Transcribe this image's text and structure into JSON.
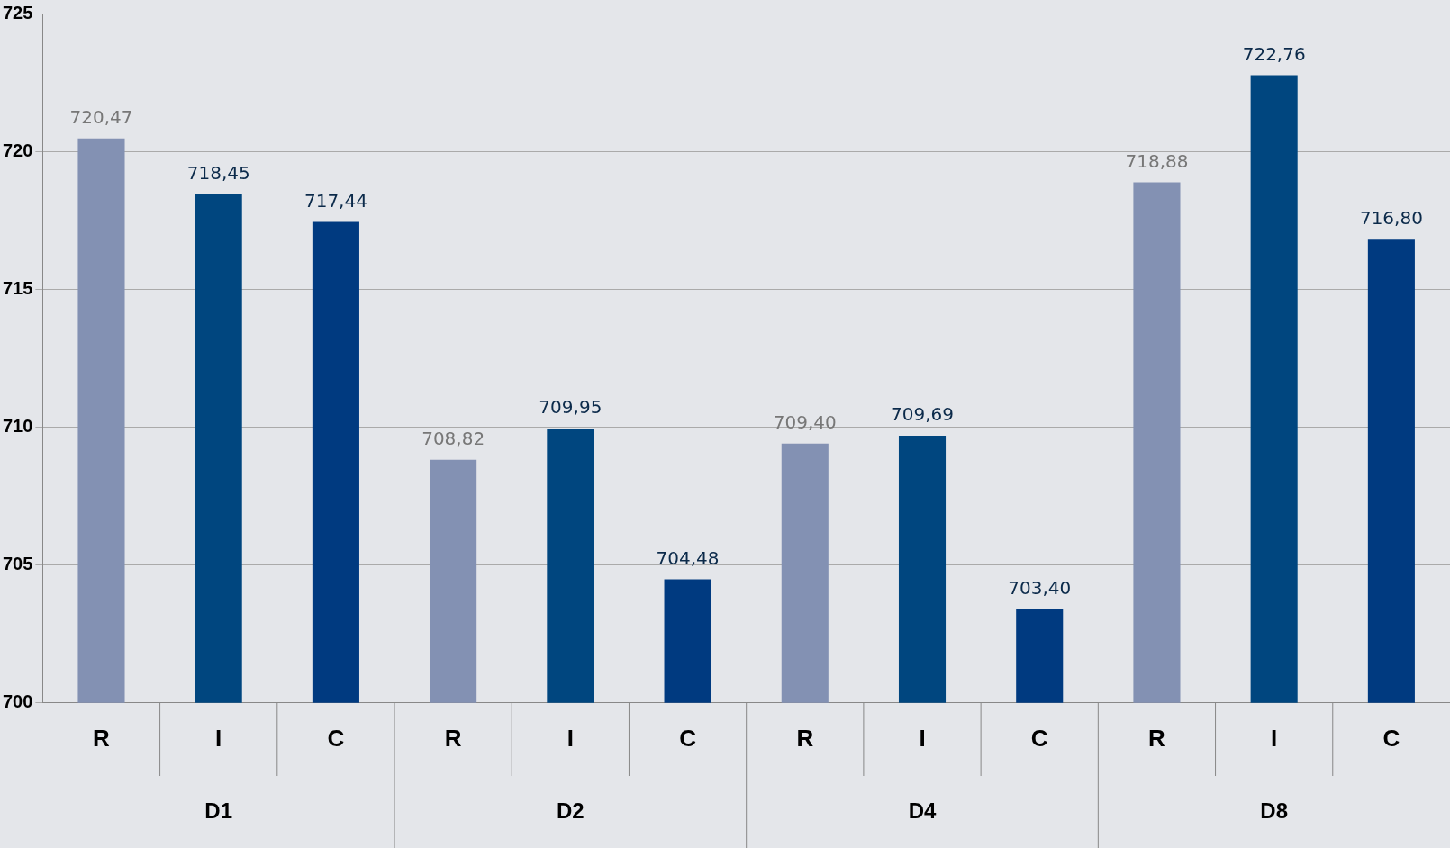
{
  "chart_data": {
    "type": "bar",
    "categories": [
      "R",
      "I",
      "C",
      "R",
      "I",
      "C",
      "R",
      "I",
      "C",
      "R",
      "I",
      "C"
    ],
    "values": [
      720.47,
      718.45,
      717.44,
      708.82,
      709.95,
      704.48,
      709.4,
      709.69,
      703.4,
      718.88,
      722.76,
      716.8
    ],
    "value_labels": [
      "720,47",
      "718,45",
      "717,44",
      "708,82",
      "709,95",
      "704,48",
      "709,40",
      "709,69",
      "703,40",
      "718,88",
      "722,76",
      "716,80"
    ],
    "colors": [
      "#8391b3",
      "#00467f",
      "#003a80",
      "#8391b3",
      "#00467f",
      "#003a80",
      "#8391b3",
      "#00467f",
      "#003a80",
      "#8391b3",
      "#00467f",
      "#003a80"
    ],
    "annotations": [
      "D1",
      "D2",
      "D4",
      "D8"
    ],
    "ylim": [
      700,
      725
    ],
    "yticks": [
      700,
      705,
      710,
      715,
      720,
      725
    ],
    "grid": "y",
    "legend": false
  }
}
